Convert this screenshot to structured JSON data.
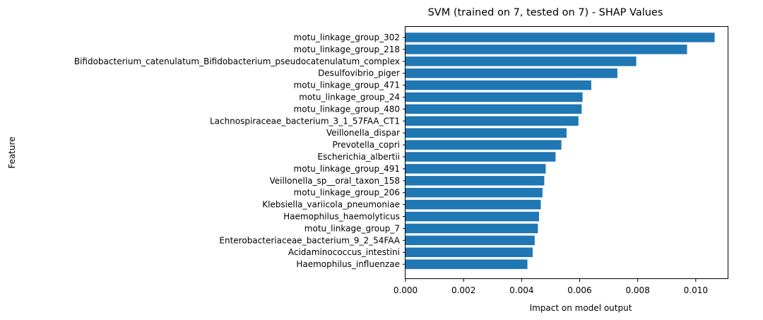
{
  "chart_data": {
    "type": "bar",
    "orientation": "horizontal",
    "title": "SVM (trained on 7, tested on 7) -  SHAP Values",
    "xlabel": "Impact on model output",
    "ylabel": "Feature",
    "xlim": [
      0,
      0.0111
    ],
    "xticks": [
      "0.000",
      "0.002",
      "0.004",
      "0.006",
      "0.008",
      "0.010"
    ],
    "grid": false,
    "bar_color": "#1f77b4",
    "categories": [
      "motu_linkage_group_302",
      "motu_linkage_group_218",
      "Bifidobacterium_catenulatum_Bifidobacterium_pseudocatenulatum_complex",
      "Desulfovibrio_piger",
      "motu_linkage_group_471",
      "motu_linkage_group_24",
      "motu_linkage_group_480",
      "Lachnospiraceae_bacterium_3_1_57FAA_CT1",
      "Veillonella_dispar",
      "Prevotella_copri",
      "Escherichia_albertii",
      "motu_linkage_group_491",
      "Veillonella_sp__oral_taxon_158",
      "motu_linkage_group_206",
      "Klebsiella_variicola_pneumoniae",
      "Haemophilus_haemolyticus",
      "motu_linkage_group_7",
      "Enterobacteriaceae_bacterium_9_2_54FAA",
      "Acidaminococcus_intestini",
      "Haemophilus_influenzae"
    ],
    "values": [
      0.01065,
      0.0097,
      0.00795,
      0.0073,
      0.0064,
      0.0061,
      0.00607,
      0.00596,
      0.00555,
      0.00537,
      0.00517,
      0.00483,
      0.00478,
      0.00472,
      0.00466,
      0.0046,
      0.00456,
      0.00445,
      0.00438,
      0.0042
    ]
  }
}
